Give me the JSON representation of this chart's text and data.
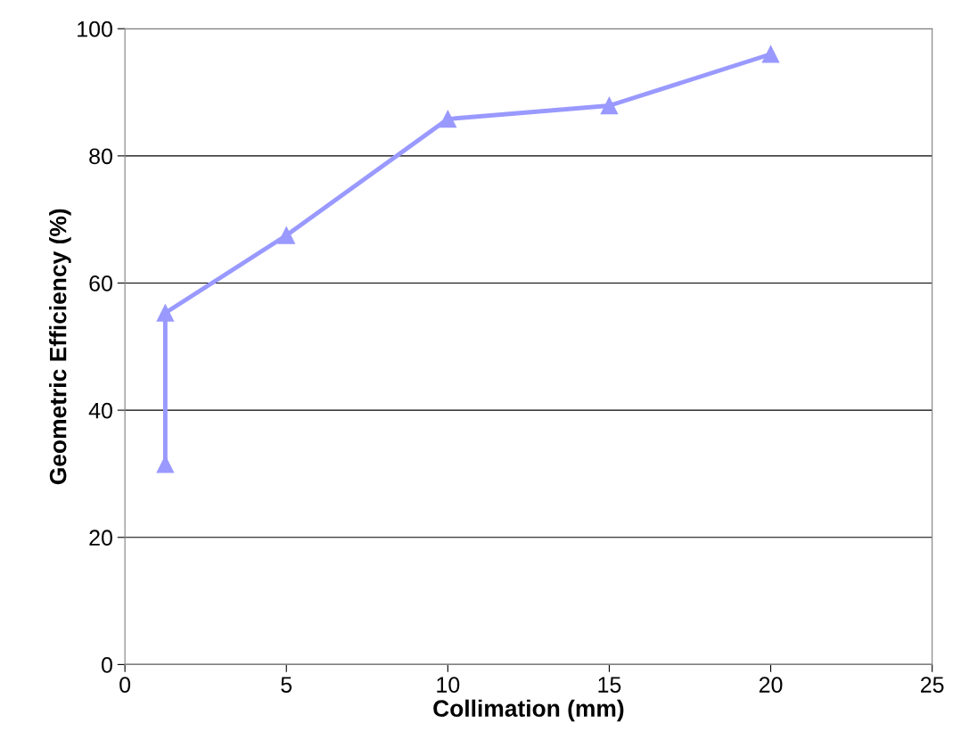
{
  "chart_data": {
    "type": "line",
    "xlabel": "Collimation (mm)",
    "ylabel": "Geometric Efficiency (%)",
    "series": [
      {
        "color": "#9999ff",
        "x": [
          1.25,
          1.25,
          5,
          10,
          15,
          20
        ],
        "values": [
          31.5,
          55.3,
          67.5,
          85.8,
          87.9,
          96.0
        ]
      }
    ],
    "xlim": [
      0,
      25
    ],
    "xticks": [
      0,
      5,
      10,
      15,
      20,
      25
    ],
    "ylim": [
      0,
      100
    ],
    "yticks": [
      0,
      20,
      40,
      60,
      80,
      100
    ],
    "grid": "y",
    "marker": "triangle",
    "line_style": "solid"
  }
}
